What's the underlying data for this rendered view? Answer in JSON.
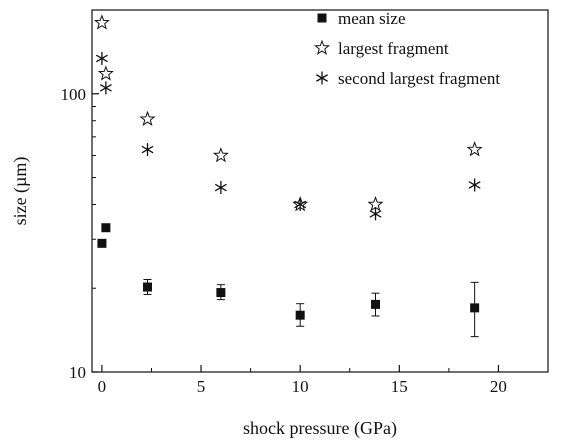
{
  "chart_data": {
    "type": "scatter",
    "title": "",
    "xlabel": "shock pressure (GPa)",
    "ylabel": "size (µm)",
    "xlim": [
      -0.5,
      22.5
    ],
    "ylim": [
      10,
      200
    ],
    "yscale": "log",
    "xticks": [
      0,
      5,
      10,
      15,
      20
    ],
    "xtick_labels": [
      "0",
      "5",
      "10",
      "15",
      "20"
    ],
    "yticks": [
      10,
      100
    ],
    "ytick_labels": [
      "10",
      "100"
    ],
    "grid": false,
    "legend_position": "top-right",
    "series": [
      {
        "name": "mean size",
        "marker": "filled-square",
        "color": "#111111",
        "points": [
          {
            "x": 0.0,
            "y": 29
          },
          {
            "x": 0.2,
            "y": 33
          },
          {
            "x": 2.3,
            "y": 20.2,
            "err_low": 19.0,
            "err_high": 21.5
          },
          {
            "x": 6.0,
            "y": 19.3,
            "err_low": 18.2,
            "err_high": 20.6
          },
          {
            "x": 10.0,
            "y": 16.0,
            "err_low": 14.6,
            "err_high": 17.6
          },
          {
            "x": 13.8,
            "y": 17.5,
            "err_low": 15.9,
            "err_high": 19.2
          },
          {
            "x": 18.8,
            "y": 17.0,
            "err_low": 13.4,
            "err_high": 21.0
          }
        ]
      },
      {
        "name": "largest fragment",
        "marker": "open-star",
        "color": "#111111",
        "points": [
          {
            "x": 0.0,
            "y": 180
          },
          {
            "x": 0.2,
            "y": 118
          },
          {
            "x": 2.3,
            "y": 81
          },
          {
            "x": 6.0,
            "y": 60
          },
          {
            "x": 10.0,
            "y": 40
          },
          {
            "x": 13.8,
            "y": 40
          },
          {
            "x": 18.8,
            "y": 63
          }
        ]
      },
      {
        "name": "second largest fragment",
        "marker": "asterisk",
        "color": "#111111",
        "points": [
          {
            "x": 0.0,
            "y": 134
          },
          {
            "x": 0.2,
            "y": 105
          },
          {
            "x": 2.3,
            "y": 63
          },
          {
            "x": 6.0,
            "y": 46
          },
          {
            "x": 10.0,
            "y": 40
          },
          {
            "x": 13.8,
            "y": 37
          },
          {
            "x": 18.8,
            "y": 47
          }
        ]
      }
    ]
  }
}
